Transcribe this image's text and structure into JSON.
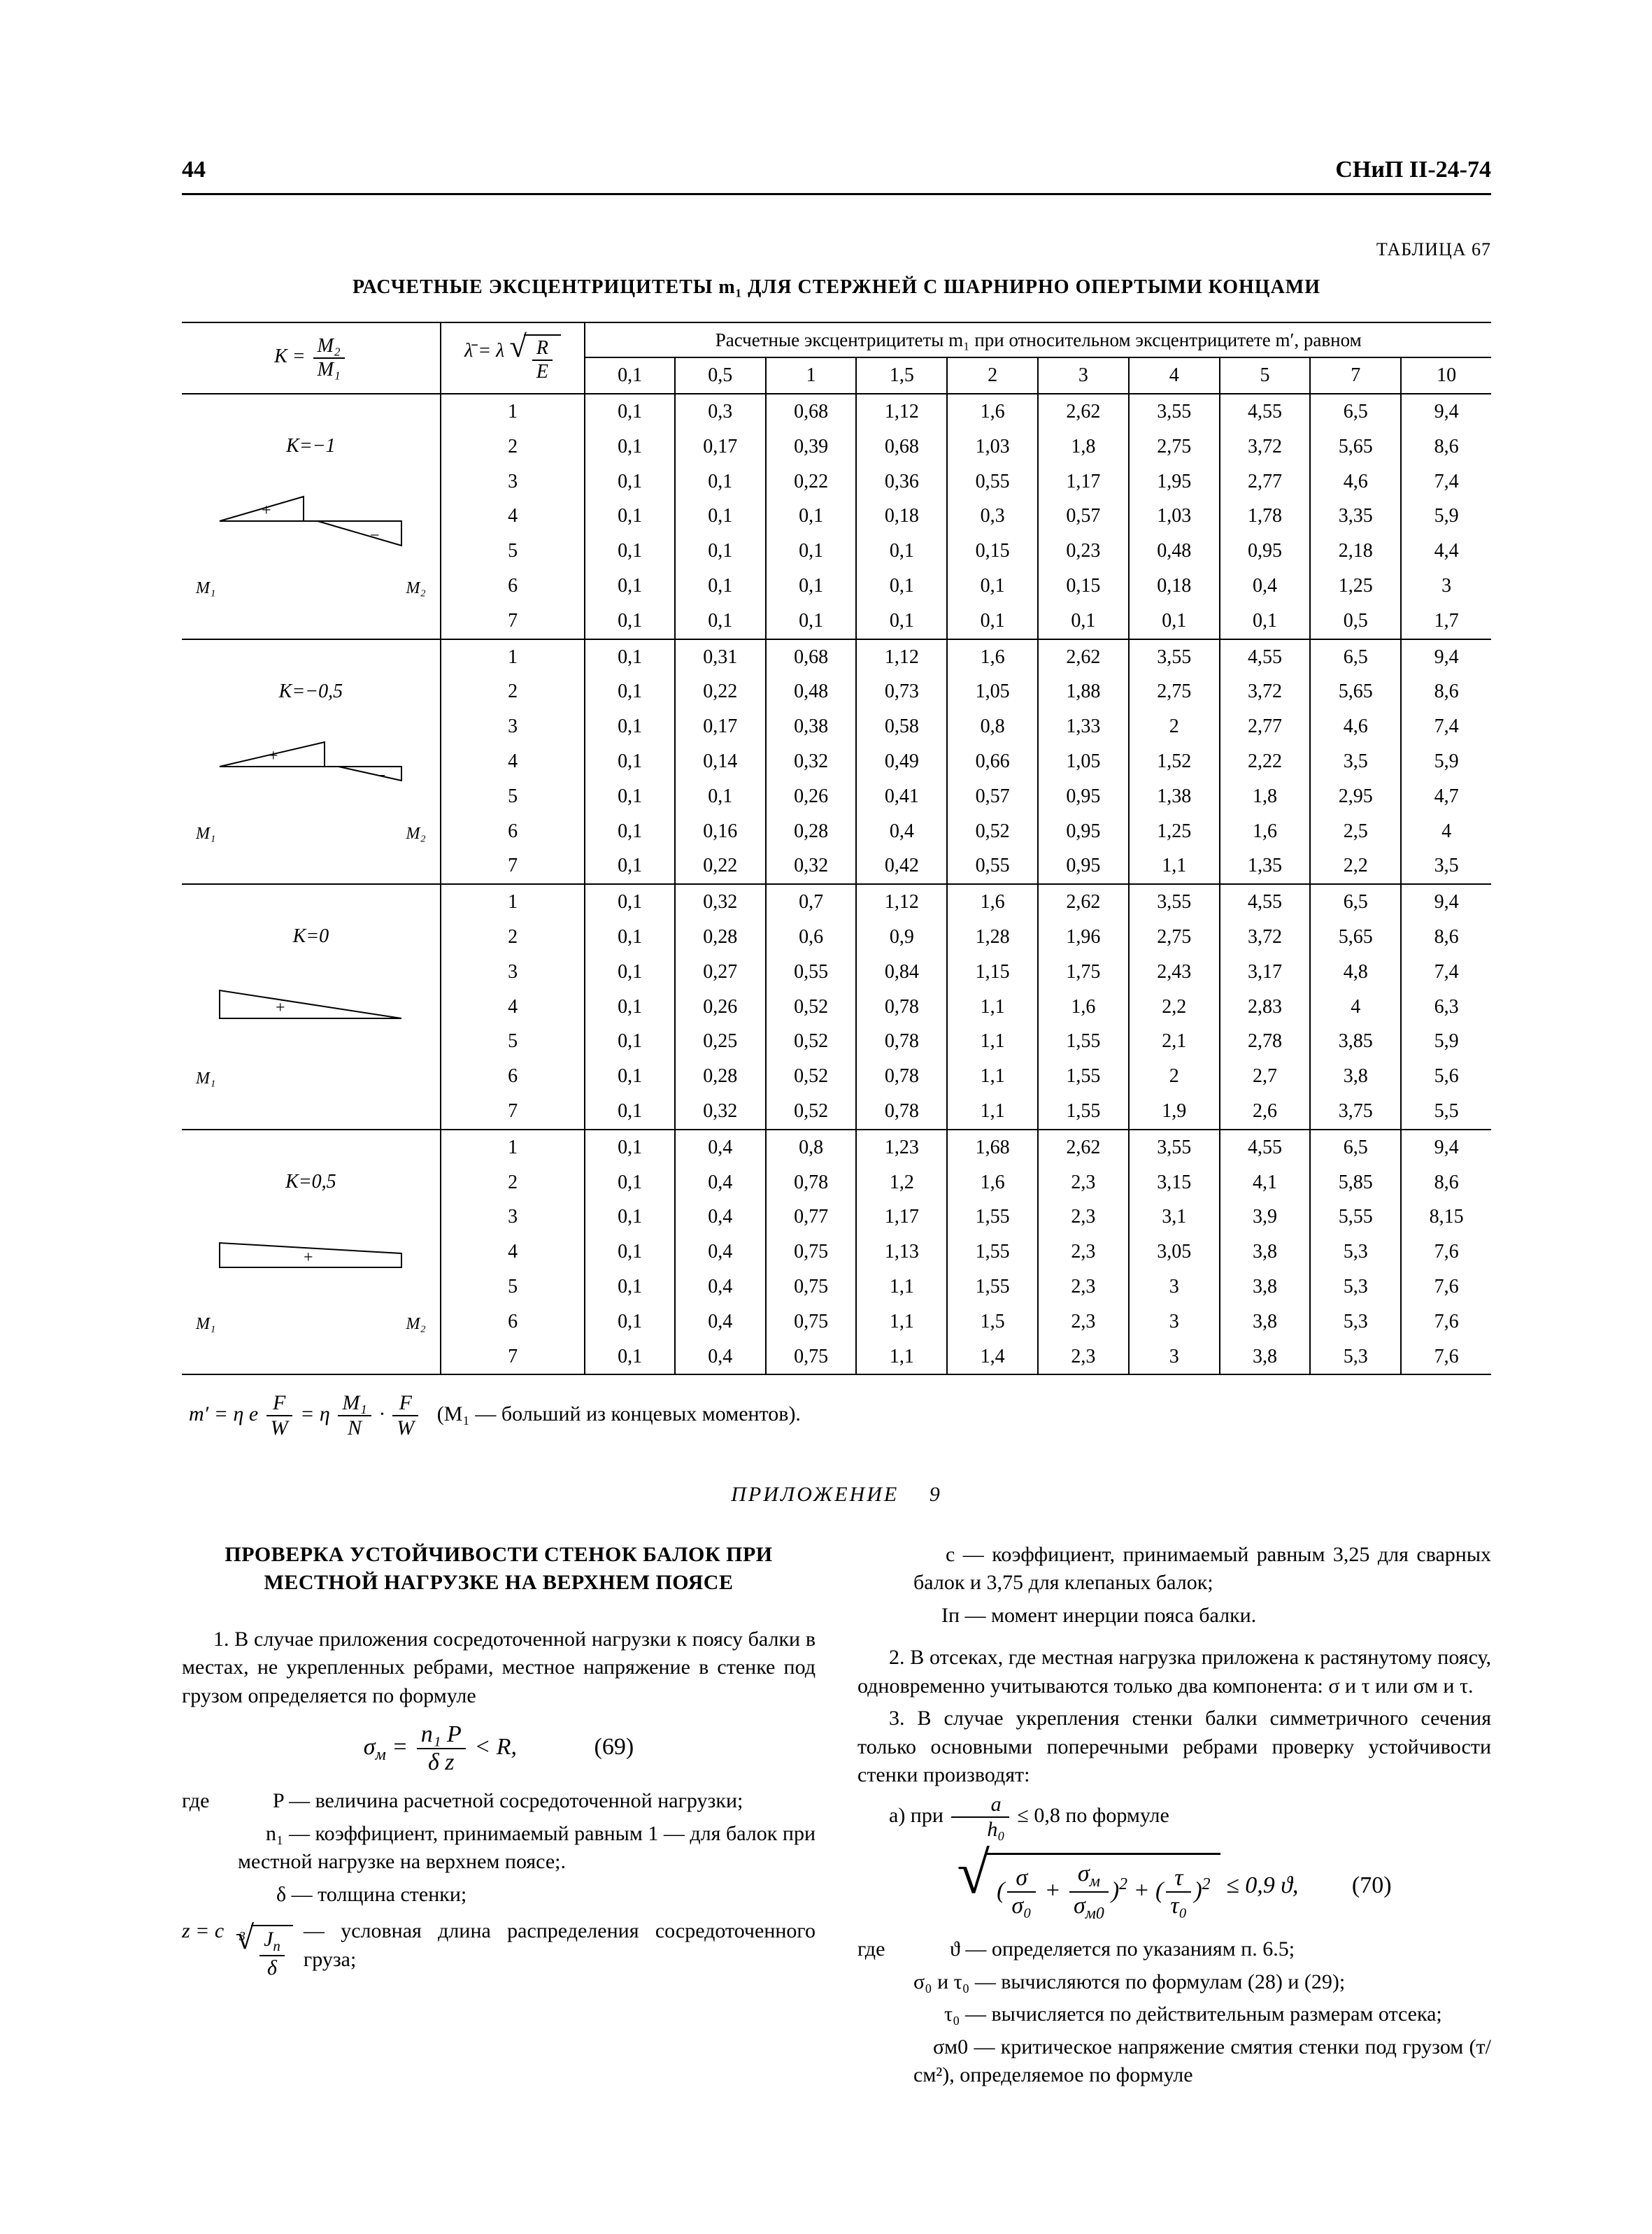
{
  "page_number": "44",
  "doc_code": "СНиП II-24-74",
  "table_label": "ТАБЛИЦА 67",
  "table_title": "РАСЧЕТНЫЕ ЭКСЦЕНТРИЦИТЕТЫ m₁ ДЛЯ СТЕРЖНЕЙ С ШАРНИРНО ОПЕРТЫМИ КОНЦАМИ",
  "col_K_formula_lhs": "K =",
  "col_K_frac_n": "M₂",
  "col_K_frac_d": "M₁",
  "col_lambda_lhs": "λ̄ = λ",
  "col_lambda_frac_n": "R",
  "col_lambda_frac_d": "E",
  "header_m1": "Расчетные эксцентрицитеты m₁ при относительном эксцентрицитете m′, равном",
  "m_headers": [
    "0,1",
    "0,5",
    "1",
    "1,5",
    "2",
    "3",
    "4",
    "5",
    "7",
    "10"
  ],
  "lambda_vals": [
    "1",
    "2",
    "3",
    "4",
    "5",
    "6",
    "7"
  ],
  "groups": [
    {
      "k": "K=−1",
      "m1": "M₁",
      "m2": "M₂",
      "type": "neg1",
      "data": [
        [
          "0,1",
          "0,3",
          "0,68",
          "1,12",
          "1,6",
          "2,62",
          "3,55",
          "4,55",
          "6,5",
          "9,4"
        ],
        [
          "0,1",
          "0,17",
          "0,39",
          "0,68",
          "1,03",
          "1,8",
          "2,75",
          "3,72",
          "5,65",
          "8,6"
        ],
        [
          "0,1",
          "0,1",
          "0,22",
          "0,36",
          "0,55",
          "1,17",
          "1,95",
          "2,77",
          "4,6",
          "7,4"
        ],
        [
          "0,1",
          "0,1",
          "0,1",
          "0,18",
          "0,3",
          "0,57",
          "1,03",
          "1,78",
          "3,35",
          "5,9"
        ],
        [
          "0,1",
          "0,1",
          "0,1",
          "0,1",
          "0,15",
          "0,23",
          "0,48",
          "0,95",
          "2,18",
          "4,4"
        ],
        [
          "0,1",
          "0,1",
          "0,1",
          "0,1",
          "0,1",
          "0,15",
          "0,18",
          "0,4",
          "1,25",
          "3"
        ],
        [
          "0,1",
          "0,1",
          "0,1",
          "0,1",
          "0,1",
          "0,1",
          "0,1",
          "0,1",
          "0,5",
          "1,7"
        ]
      ]
    },
    {
      "k": "K=−0,5",
      "m1": "M₁",
      "m2": "M₂",
      "type": "neg05",
      "data": [
        [
          "0,1",
          "0,31",
          "0,68",
          "1,12",
          "1,6",
          "2,62",
          "3,55",
          "4,55",
          "6,5",
          "9,4"
        ],
        [
          "0,1",
          "0,22",
          "0,48",
          "0,73",
          "1,05",
          "1,88",
          "2,75",
          "3,72",
          "5,65",
          "8,6"
        ],
        [
          "0,1",
          "0,17",
          "0,38",
          "0,58",
          "0,8",
          "1,33",
          "2",
          "2,77",
          "4,6",
          "7,4"
        ],
        [
          "0,1",
          "0,14",
          "0,32",
          "0,49",
          "0,66",
          "1,05",
          "1,52",
          "2,22",
          "3,5",
          "5,9"
        ],
        [
          "0,1",
          "0,1",
          "0,26",
          "0,41",
          "0,57",
          "0,95",
          "1,38",
          "1,8",
          "2,95",
          "4,7"
        ],
        [
          "0,1",
          "0,16",
          "0,28",
          "0,4",
          "0,52",
          "0,95",
          "1,25",
          "1,6",
          "2,5",
          "4"
        ],
        [
          "0,1",
          "0,22",
          "0,32",
          "0,42",
          "0,55",
          "0,95",
          "1,1",
          "1,35",
          "2,2",
          "3,5"
        ]
      ]
    },
    {
      "k": "K=0",
      "m1": "M₁",
      "m2": "",
      "type": "zero",
      "data": [
        [
          "0,1",
          "0,32",
          "0,7",
          "1,12",
          "1,6",
          "2,62",
          "3,55",
          "4,55",
          "6,5",
          "9,4"
        ],
        [
          "0,1",
          "0,28",
          "0,6",
          "0,9",
          "1,28",
          "1,96",
          "2,75",
          "3,72",
          "5,65",
          "8,6"
        ],
        [
          "0,1",
          "0,27",
          "0,55",
          "0,84",
          "1,15",
          "1,75",
          "2,43",
          "3,17",
          "4,8",
          "7,4"
        ],
        [
          "0,1",
          "0,26",
          "0,52",
          "0,78",
          "1,1",
          "1,6",
          "2,2",
          "2,83",
          "4",
          "6,3"
        ],
        [
          "0,1",
          "0,25",
          "0,52",
          "0,78",
          "1,1",
          "1,55",
          "2,1",
          "2,78",
          "3,85",
          "5,9"
        ],
        [
          "0,1",
          "0,28",
          "0,52",
          "0,78",
          "1,1",
          "1,55",
          "2",
          "2,7",
          "3,8",
          "5,6"
        ],
        [
          "0,1",
          "0,32",
          "0,52",
          "0,78",
          "1,1",
          "1,55",
          "1,9",
          "2,6",
          "3,75",
          "5,5"
        ]
      ]
    },
    {
      "k": "K=0,5",
      "m1": "M₁",
      "m2": "M₂",
      "type": "pos05",
      "data": [
        [
          "0,1",
          "0,4",
          "0,8",
          "1,23",
          "1,68",
          "2,62",
          "3,55",
          "4,55",
          "6,5",
          "9,4"
        ],
        [
          "0,1",
          "0,4",
          "0,78",
          "1,2",
          "1,6",
          "2,3",
          "3,15",
          "4,1",
          "5,85",
          "8,6"
        ],
        [
          "0,1",
          "0,4",
          "0,77",
          "1,17",
          "1,55",
          "2,3",
          "3,1",
          "3,9",
          "5,55",
          "8,15"
        ],
        [
          "0,1",
          "0,4",
          "0,75",
          "1,13",
          "1,55",
          "2,3",
          "3,05",
          "3,8",
          "5,3",
          "7,6"
        ],
        [
          "0,1",
          "0,4",
          "0,75",
          "1,1",
          "1,55",
          "2,3",
          "3",
          "3,8",
          "5,3",
          "7,6"
        ],
        [
          "0,1",
          "0,4",
          "0,75",
          "1,1",
          "1,5",
          "2,3",
          "3",
          "3,8",
          "5,3",
          "7,6"
        ],
        [
          "0,1",
          "0,4",
          "0,75",
          "1,1",
          "1,4",
          "2,3",
          "3",
          "3,8",
          "5,3",
          "7,6"
        ]
      ]
    }
  ],
  "mprime_text": "(M₁ — больший из концевых моментов).",
  "appendix": "ПРИЛОЖЕНИЕ  9",
  "sec_title": "ПРОВЕРКА УСТОЙЧИВОСТИ СТЕНОК БАЛОК ПРИ МЕСТНОЙ НАГРУЗКЕ НА ВЕРХНЕМ ПОЯСЕ",
  "para1": "1. В случае приложения сосредоточенной нагрузки к поясу балки в местах, не укрепленных ребрами, местное напряжение в стенке под грузом определяется по формуле",
  "eq69_no": "(69)",
  "where": "где",
  "def_P": "P — величина расчетной сосредоточенной нагрузки;",
  "def_n1": "n₁ — коэффициент, принимаемый равным 1 — для балок при местной нагрузке на верхнем поясе;.",
  "def_delta": "δ — толщина стенки;",
  "def_z_tail": "— условная длина распределения сосредоточенного груза;",
  "def_c": "c — коэффициент, принимаемый равным 3,25 для сварных балок и 3,75 для клепаных балок;",
  "def_In": "Iп — момент инерции пояса балки.",
  "para2": "2. В отсеках, где местная нагрузка приложена к растянутому поясу, одновременно учитываются только два компонента: σ и τ или σм и τ.",
  "para3": "3. В случае укрепления стенки балки симметричного сечения только основными поперечными ребрами проверку устойчивости стенки производят:",
  "para3a_pre": "а) при ",
  "para3a_post": " ≤ 0,8 по формуле",
  "eq70_no": "(70)",
  "def_theta": "ϑ — определяется по указаниям п. 6.5;",
  "def_sigma0": "σ₀ и τ₀ — вычисляются по формулам (28) и (29);",
  "def_tau0": "τ₀ — вычисляется по действительным размерам отсека;",
  "def_sigmam0": "σм0 — критическое напряжение смятия стенки под грузом (т/см²), определяемое по формуле"
}
